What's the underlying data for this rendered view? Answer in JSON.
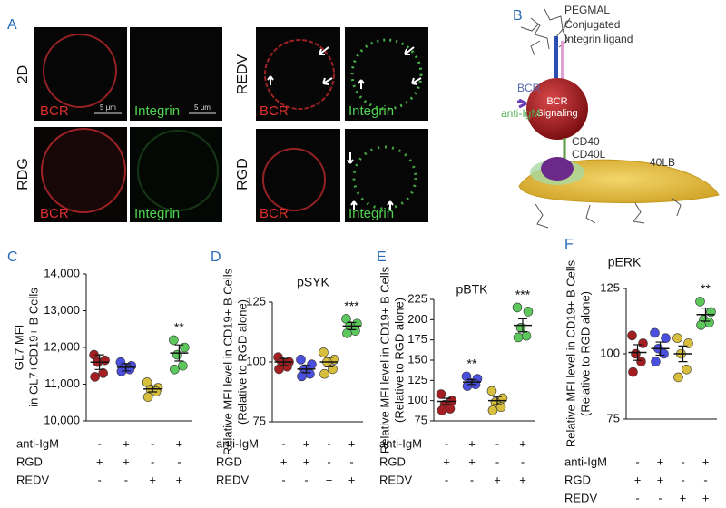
{
  "panel_a": {
    "letter": "A",
    "row_labels": [
      "2D",
      "RDG",
      "REDV",
      "RGD"
    ],
    "channel_labels": [
      "BCR",
      "Integrin",
      "BCR",
      "Integrin",
      "BCR",
      "Integrin",
      "BCR",
      "Integrin"
    ],
    "scale_bars": [
      "5 μm",
      "5 μm"
    ]
  },
  "panel_b": {
    "letter": "B",
    "ligand_lines": [
      "PEGMAL",
      "Conjugated",
      "Integrin ligand"
    ],
    "sphere_lines": [
      "BCR",
      "Signaling"
    ],
    "receptor": "BCR",
    "antibody": "anti-IgM",
    "cd40": "CD40",
    "cd40l": "CD40L",
    "cell": "40LB"
  },
  "chart_data": [
    {
      "type": "dot",
      "panel": "C",
      "ylabel": [
        "GL7 MFI",
        "in GL7+CD19+ B Cells"
      ],
      "ylim": [
        10000,
        14000
      ],
      "yticks": [
        {
          "value": 10000,
          "label": "10,000"
        },
        {
          "value": 11000,
          "label": "11,000"
        },
        {
          "value": 12000,
          "label": "12,000"
        },
        {
          "value": 13000,
          "label": "13,000"
        },
        {
          "value": 14000,
          "label": "14,000"
        }
      ],
      "groups": [
        {
          "color": "#a31f22",
          "values": [
            11800,
            11650,
            11600,
            11300,
            11200
          ],
          "mean": 11600,
          "error": 200
        },
        {
          "color": "#4b4fe0",
          "values": [
            11600,
            11500,
            11450,
            11400,
            11350
          ],
          "mean": 11460,
          "error": 100
        },
        {
          "color": "#d7bf3d",
          "values": [
            11050,
            10900,
            10850,
            10800,
            10650
          ],
          "mean": 10870,
          "error": 80
        },
        {
          "color": "#5cc85c",
          "values": [
            12200,
            12000,
            11800,
            11500,
            11400
          ],
          "mean": 11850,
          "error": 220,
          "annotation": "**"
        }
      ],
      "conditions": [
        {
          "name": "anti-IgM",
          "signs": [
            "-",
            "+",
            "-",
            "+"
          ]
        },
        {
          "name": "RGD",
          "signs": [
            "+",
            "+",
            "-",
            "-"
          ]
        },
        {
          "name": "REDV",
          "signs": [
            "-",
            "-",
            "+",
            "+"
          ]
        }
      ]
    },
    {
      "type": "dot",
      "panel": "D",
      "title": "pSYK",
      "ylabel": [
        "Relative MFI level  in CD19+ B Cells",
        "(Relative to RGD alone)"
      ],
      "ylim": [
        75,
        125
      ],
      "yticks": [
        75,
        100,
        125
      ],
      "groups": [
        {
          "color": "#a31f22",
          "values": [
            102,
            100,
            100,
            98,
            97
          ],
          "mean": 100,
          "error": 1.5
        },
        {
          "color": "#4b4fe0",
          "values": [
            101,
            99,
            97,
            95,
            94
          ],
          "mean": 97,
          "error": 1.5
        },
        {
          "color": "#d7bf3d",
          "values": [
            104,
            101,
            100,
            97,
            95
          ],
          "mean": 100,
          "error": 2
        },
        {
          "color": "#5cc85c",
          "values": [
            118,
            116,
            115,
            113,
            112
          ],
          "mean": 115,
          "error": 1.5,
          "annotation": "***"
        }
      ],
      "conditions": [
        {
          "name": "anti-IgM",
          "signs": [
            "-",
            "+",
            "-",
            "+"
          ]
        },
        {
          "name": "RGD",
          "signs": [
            "+",
            "+",
            "-",
            "-"
          ]
        },
        {
          "name": "REDV",
          "signs": [
            "-",
            "-",
            "+",
            "+"
          ]
        }
      ]
    },
    {
      "type": "dot",
      "panel": "E",
      "title": "pBTK",
      "ylabel": [
        "Relative MFI level  in CD19+ B Cells",
        "(Relative to RGD alone)"
      ],
      "ylim": [
        75,
        225
      ],
      "yticks": [
        75,
        100,
        125,
        150,
        175,
        200,
        225
      ],
      "groups": [
        {
          "color": "#a31f22",
          "values": [
            108,
            100,
            95,
            90,
            88
          ],
          "mean": 99,
          "error": 4
        },
        {
          "color": "#4b4fe0",
          "values": [
            130,
            127,
            122,
            120,
            118
          ],
          "mean": 123,
          "error": 3,
          "annotation": "**"
        },
        {
          "color": "#d7bf3d",
          "values": [
            112,
            103,
            98,
            92,
            88
          ],
          "mean": 100,
          "error": 5
        },
        {
          "color": "#5cc85c",
          "values": [
            215,
            210,
            190,
            180,
            178
          ],
          "mean": 193,
          "error": 8,
          "annotation": "***"
        }
      ],
      "conditions": [
        {
          "name": "anti-IgM",
          "signs": [
            "-",
            "+",
            "-",
            "+"
          ]
        },
        {
          "name": "RGD",
          "signs": [
            "+",
            "+",
            "-",
            "-"
          ]
        },
        {
          "name": "REDV",
          "signs": [
            "-",
            "-",
            "+",
            "+"
          ]
        }
      ]
    },
    {
      "type": "dot",
      "panel": "F",
      "title": "pERK",
      "ylabel": [
        "Relative MFI level  in CD19+ B Cells",
        "(Relative to RGD alone)"
      ],
      "ylim": [
        75,
        125
      ],
      "yticks": [
        75,
        100,
        125
      ],
      "groups": [
        {
          "color": "#a31f22",
          "values": [
            107,
            104,
            100,
            97,
            93
          ],
          "mean": 100.5,
          "error": 3
        },
        {
          "color": "#4b4fe0",
          "values": [
            108,
            106,
            102,
            100,
            97
          ],
          "mean": 102,
          "error": 2.5
        },
        {
          "color": "#d7bf3d",
          "values": [
            106,
            104,
            100,
            94,
            91
          ],
          "mean": 100,
          "error": 3
        },
        {
          "color": "#5cc85c",
          "values": [
            120,
            116,
            113,
            112,
            111
          ],
          "mean": 115,
          "error": 2.5,
          "annotation": "**"
        }
      ],
      "conditions": [
        {
          "name": "anti-IgM",
          "signs": [
            "-",
            "+",
            "-",
            "+"
          ]
        },
        {
          "name": "RGD",
          "signs": [
            "+",
            "+",
            "-",
            "-"
          ]
        },
        {
          "name": "REDV",
          "signs": [
            "-",
            "-",
            "+",
            "+"
          ]
        }
      ]
    }
  ]
}
